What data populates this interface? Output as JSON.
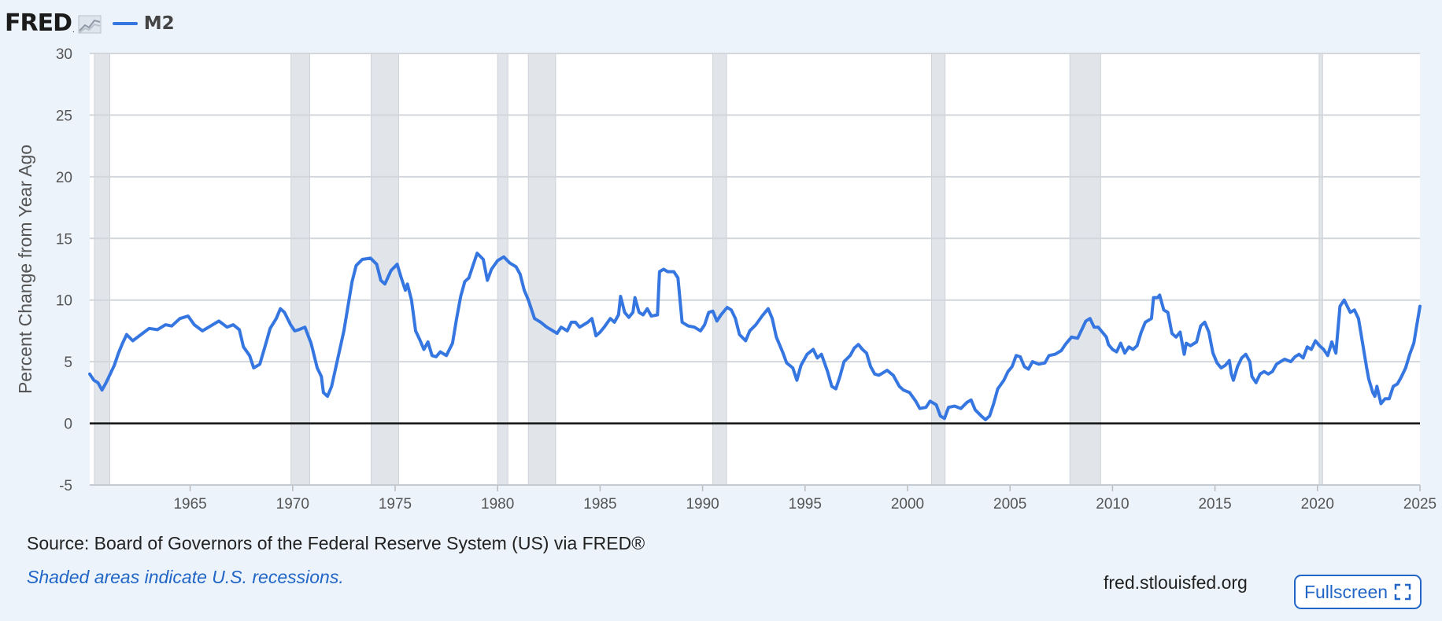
{
  "header": {
    "logo_text": "FRED",
    "logo_dot": ".",
    "logo_icon": "line-chart-icon",
    "legend_label": "M2",
    "legend_color": "#3576e0"
  },
  "chart_data": {
    "type": "line",
    "title": "",
    "xlabel": "",
    "ylabel": "Percent Change from Year Ago",
    "xlim": [
      1960.1,
      2025.0
    ],
    "ylim": [
      -5,
      30
    ],
    "xticks": [
      1965,
      1970,
      1975,
      1980,
      1985,
      1990,
      1995,
      2000,
      2005,
      2010,
      2015,
      2020,
      2025
    ],
    "yticks": [
      -5,
      0,
      5,
      10,
      15,
      20,
      25,
      30
    ],
    "grid": true,
    "zero_line": true,
    "recessions": [
      [
        1960.33,
        1961.08
      ],
      [
        1969.92,
        1970.83
      ],
      [
        1973.83,
        1975.17
      ],
      [
        1980.0,
        1980.5
      ],
      [
        1981.5,
        1982.83
      ],
      [
        1990.5,
        1991.17
      ],
      [
        2001.17,
        2001.83
      ],
      [
        2007.92,
        2009.42
      ],
      [
        2020.08,
        2020.25
      ]
    ],
    "series": [
      {
        "name": "M2",
        "color": "#3576e0",
        "points": [
          [
            1960.1,
            4.0
          ],
          [
            1960.3,
            3.5
          ],
          [
            1960.5,
            3.3
          ],
          [
            1960.7,
            2.7
          ],
          [
            1960.9,
            3.3
          ],
          [
            1961.1,
            4.0
          ],
          [
            1961.3,
            4.7
          ],
          [
            1961.5,
            5.7
          ],
          [
            1961.7,
            6.5
          ],
          [
            1961.9,
            7.2
          ],
          [
            1962.2,
            6.7
          ],
          [
            1962.6,
            7.2
          ],
          [
            1963.0,
            7.7
          ],
          [
            1963.4,
            7.6
          ],
          [
            1963.8,
            8.0
          ],
          [
            1964.1,
            7.9
          ],
          [
            1964.5,
            8.5
          ],
          [
            1964.9,
            8.7
          ],
          [
            1965.2,
            8.0
          ],
          [
            1965.6,
            7.5
          ],
          [
            1966.0,
            7.9
          ],
          [
            1966.4,
            8.3
          ],
          [
            1966.8,
            7.8
          ],
          [
            1967.1,
            8.0
          ],
          [
            1967.4,
            7.6
          ],
          [
            1967.6,
            6.2
          ],
          [
            1967.9,
            5.5
          ],
          [
            1968.1,
            4.5
          ],
          [
            1968.4,
            4.8
          ],
          [
            1968.7,
            6.5
          ],
          [
            1968.9,
            7.7
          ],
          [
            1969.2,
            8.5
          ],
          [
            1969.4,
            9.3
          ],
          [
            1969.6,
            9.0
          ],
          [
            1969.9,
            8.0
          ],
          [
            1970.1,
            7.5
          ],
          [
            1970.3,
            7.6
          ],
          [
            1970.6,
            7.8
          ],
          [
            1970.9,
            6.5
          ],
          [
            1971.2,
            4.5
          ],
          [
            1971.4,
            3.8
          ],
          [
            1971.5,
            2.5
          ],
          [
            1971.7,
            2.2
          ],
          [
            1971.9,
            3.0
          ],
          [
            1972.1,
            4.5
          ],
          [
            1972.3,
            6.0
          ],
          [
            1972.5,
            7.5
          ],
          [
            1972.7,
            9.5
          ],
          [
            1972.9,
            11.5
          ],
          [
            1973.1,
            12.8
          ],
          [
            1973.4,
            13.3
          ],
          [
            1973.8,
            13.4
          ],
          [
            1974.1,
            12.9
          ],
          [
            1974.3,
            11.6
          ],
          [
            1974.5,
            11.3
          ],
          [
            1974.8,
            12.4
          ],
          [
            1975.1,
            12.9
          ],
          [
            1975.3,
            11.8
          ],
          [
            1975.5,
            10.8
          ],
          [
            1975.6,
            11.3
          ],
          [
            1975.8,
            10.0
          ],
          [
            1976.0,
            7.5
          ],
          [
            1976.2,
            6.8
          ],
          [
            1976.4,
            6.0
          ],
          [
            1976.6,
            6.6
          ],
          [
            1976.8,
            5.5
          ],
          [
            1977.0,
            5.4
          ],
          [
            1977.2,
            5.8
          ],
          [
            1977.5,
            5.5
          ],
          [
            1977.8,
            6.5
          ],
          [
            1978.0,
            8.5
          ],
          [
            1978.2,
            10.3
          ],
          [
            1978.4,
            11.5
          ],
          [
            1978.6,
            11.8
          ],
          [
            1978.8,
            12.8
          ],
          [
            1979.0,
            13.8
          ],
          [
            1979.3,
            13.3
          ],
          [
            1979.5,
            11.6
          ],
          [
            1979.7,
            12.5
          ],
          [
            1980.0,
            13.2
          ],
          [
            1980.3,
            13.5
          ],
          [
            1980.6,
            13.0
          ],
          [
            1980.9,
            12.7
          ],
          [
            1981.1,
            12.1
          ],
          [
            1981.3,
            10.8
          ],
          [
            1981.5,
            10.0
          ],
          [
            1981.8,
            8.5
          ],
          [
            1982.1,
            8.2
          ],
          [
            1982.4,
            7.8
          ],
          [
            1982.7,
            7.5
          ],
          [
            1982.9,
            7.3
          ],
          [
            1983.1,
            7.8
          ],
          [
            1983.4,
            7.5
          ],
          [
            1983.6,
            8.2
          ],
          [
            1983.8,
            8.2
          ],
          [
            1984.0,
            7.8
          ],
          [
            1984.2,
            8.0
          ],
          [
            1984.4,
            8.2
          ],
          [
            1984.6,
            8.5
          ],
          [
            1984.8,
            7.1
          ],
          [
            1985.0,
            7.4
          ],
          [
            1985.2,
            7.8
          ],
          [
            1985.5,
            8.5
          ],
          [
            1985.7,
            8.2
          ],
          [
            1985.9,
            8.8
          ],
          [
            1986.0,
            10.3
          ],
          [
            1986.2,
            9.0
          ],
          [
            1986.4,
            8.6
          ],
          [
            1986.6,
            9.0
          ],
          [
            1986.7,
            10.2
          ],
          [
            1986.9,
            9.0
          ],
          [
            1987.1,
            8.8
          ],
          [
            1987.3,
            9.3
          ],
          [
            1987.5,
            8.7
          ],
          [
            1987.8,
            8.8
          ],
          [
            1987.9,
            12.3
          ],
          [
            1988.1,
            12.5
          ],
          [
            1988.3,
            12.3
          ],
          [
            1988.6,
            12.3
          ],
          [
            1988.8,
            11.8
          ],
          [
            1989.0,
            8.2
          ],
          [
            1989.3,
            7.9
          ],
          [
            1989.6,
            7.8
          ],
          [
            1989.9,
            7.5
          ],
          [
            1990.1,
            8.0
          ],
          [
            1990.3,
            9.0
          ],
          [
            1990.5,
            9.1
          ],
          [
            1990.7,
            8.3
          ],
          [
            1990.9,
            8.8
          ],
          [
            1991.2,
            9.4
          ],
          [
            1991.4,
            9.2
          ],
          [
            1991.6,
            8.5
          ],
          [
            1991.8,
            7.2
          ],
          [
            1992.1,
            6.7
          ],
          [
            1992.3,
            7.5
          ],
          [
            1992.6,
            8.0
          ],
          [
            1992.9,
            8.7
          ],
          [
            1993.2,
            9.3
          ],
          [
            1993.4,
            8.5
          ],
          [
            1993.6,
            7.0
          ],
          [
            1993.9,
            5.8
          ],
          [
            1994.1,
            4.9
          ],
          [
            1994.4,
            4.5
          ],
          [
            1994.6,
            3.5
          ],
          [
            1994.8,
            4.7
          ],
          [
            1995.1,
            5.6
          ],
          [
            1995.4,
            6.0
          ],
          [
            1995.6,
            5.3
          ],
          [
            1995.8,
            5.6
          ],
          [
            1996.1,
            4.2
          ],
          [
            1996.3,
            3.0
          ],
          [
            1996.5,
            2.8
          ],
          [
            1996.7,
            3.8
          ],
          [
            1996.9,
            5.0
          ],
          [
            1997.2,
            5.5
          ],
          [
            1997.4,
            6.1
          ],
          [
            1997.6,
            6.4
          ],
          [
            1997.8,
            6.0
          ],
          [
            1998.0,
            5.7
          ],
          [
            1998.2,
            4.6
          ],
          [
            1998.4,
            4.0
          ],
          [
            1998.6,
            3.9
          ],
          [
            1998.8,
            4.1
          ],
          [
            1999.0,
            4.3
          ],
          [
            1999.3,
            3.9
          ],
          [
            1999.6,
            3.0
          ],
          [
            1999.8,
            2.7
          ],
          [
            2000.1,
            2.5
          ],
          [
            2000.4,
            1.8
          ],
          [
            2000.6,
            1.2
          ],
          [
            2000.9,
            1.3
          ],
          [
            2001.1,
            1.8
          ],
          [
            2001.4,
            1.5
          ],
          [
            2001.6,
            0.6
          ],
          [
            2001.8,
            0.4
          ],
          [
            2002.0,
            1.3
          ],
          [
            2002.3,
            1.4
          ],
          [
            2002.6,
            1.2
          ],
          [
            2002.9,
            1.7
          ],
          [
            2003.1,
            1.9
          ],
          [
            2003.3,
            1.1
          ],
          [
            2003.6,
            0.6
          ],
          [
            2003.8,
            0.3
          ],
          [
            2004.0,
            0.6
          ],
          [
            2004.2,
            1.6
          ],
          [
            2004.4,
            2.8
          ],
          [
            2004.7,
            3.5
          ],
          [
            2004.9,
            4.2
          ],
          [
            2005.1,
            4.6
          ],
          [
            2005.3,
            5.5
          ],
          [
            2005.5,
            5.4
          ],
          [
            2005.7,
            4.6
          ],
          [
            2005.9,
            4.4
          ],
          [
            2006.1,
            5.0
          ],
          [
            2006.4,
            4.8
          ],
          [
            2006.7,
            4.9
          ],
          [
            2006.9,
            5.5
          ],
          [
            2007.2,
            5.6
          ],
          [
            2007.5,
            5.9
          ],
          [
            2007.7,
            6.4
          ],
          [
            2008.0,
            7.0
          ],
          [
            2008.3,
            6.9
          ],
          [
            2008.5,
            7.6
          ],
          [
            2008.7,
            8.3
          ],
          [
            2008.9,
            8.5
          ],
          [
            2009.1,
            7.8
          ],
          [
            2009.3,
            7.8
          ],
          [
            2009.5,
            7.4
          ],
          [
            2009.7,
            7.0
          ],
          [
            2009.8,
            6.4
          ],
          [
            2010.0,
            6.0
          ],
          [
            2010.2,
            5.8
          ],
          [
            2010.4,
            6.5
          ],
          [
            2010.6,
            5.7
          ],
          [
            2010.8,
            6.2
          ],
          [
            2011.0,
            6.0
          ],
          [
            2011.2,
            6.3
          ],
          [
            2011.4,
            7.4
          ],
          [
            2011.6,
            8.2
          ],
          [
            2011.9,
            8.5
          ],
          [
            2012.0,
            10.2
          ],
          [
            2012.2,
            10.2
          ],
          [
            2012.3,
            10.4
          ],
          [
            2012.5,
            9.2
          ],
          [
            2012.7,
            9.0
          ],
          [
            2012.9,
            7.3
          ],
          [
            2013.1,
            7.0
          ],
          [
            2013.3,
            7.4
          ],
          [
            2013.5,
            5.6
          ],
          [
            2013.6,
            6.5
          ],
          [
            2013.8,
            6.3
          ],
          [
            2014.1,
            6.6
          ],
          [
            2014.3,
            7.9
          ],
          [
            2014.5,
            8.2
          ],
          [
            2014.7,
            7.4
          ],
          [
            2014.9,
            5.7
          ],
          [
            2015.1,
            4.9
          ],
          [
            2015.3,
            4.5
          ],
          [
            2015.5,
            4.7
          ],
          [
            2015.7,
            5.1
          ],
          [
            2015.8,
            4.0
          ],
          [
            2015.9,
            3.5
          ],
          [
            2016.1,
            4.6
          ],
          [
            2016.3,
            5.3
          ],
          [
            2016.5,
            5.6
          ],
          [
            2016.7,
            5.0
          ],
          [
            2016.8,
            3.8
          ],
          [
            2017.0,
            3.3
          ],
          [
            2017.2,
            4.0
          ],
          [
            2017.4,
            4.2
          ],
          [
            2017.6,
            4.0
          ],
          [
            2017.8,
            4.2
          ],
          [
            2018.0,
            4.8
          ],
          [
            2018.2,
            5.0
          ],
          [
            2018.4,
            5.2
          ],
          [
            2018.7,
            5.0
          ],
          [
            2018.9,
            5.4
          ],
          [
            2019.1,
            5.6
          ],
          [
            2019.3,
            5.3
          ],
          [
            2019.5,
            6.2
          ],
          [
            2019.7,
            6.0
          ],
          [
            2019.9,
            6.7
          ],
          [
            2020.1,
            6.3
          ],
          [
            2020.3,
            6.0
          ],
          [
            2020.5,
            5.5
          ],
          [
            2020.7,
            6.6
          ],
          [
            2020.9,
            5.7
          ],
          [
            2021.1,
            9.5
          ],
          [
            2021.3,
            10.0
          ],
          [
            2021.6,
            9.0
          ],
          [
            2021.8,
            9.2
          ],
          [
            2022.0,
            8.5
          ],
          [
            2022.2,
            6.5
          ],
          [
            2022.4,
            4.5
          ],
          [
            2022.5,
            3.6
          ],
          [
            2022.7,
            2.5
          ],
          [
            2022.8,
            2.2
          ],
          [
            2022.9,
            3.0
          ],
          [
            2023.1,
            1.6
          ],
          [
            2023.3,
            2.0
          ],
          [
            2023.5,
            2.0
          ],
          [
            2023.7,
            3.0
          ],
          [
            2023.9,
            3.2
          ],
          [
            2024.1,
            3.8
          ],
          [
            2024.3,
            4.5
          ],
          [
            2024.5,
            5.6
          ],
          [
            2024.7,
            6.5
          ],
          [
            2024.9,
            8.5
          ],
          [
            2025.0,
            9.5
          ]
        ]
      }
    ]
  },
  "footer": {
    "source": "Source: Board of Governors of the Federal Reserve System (US) via FRED®",
    "note": "Shaded areas indicate U.S. recessions.",
    "site": "fred.stlouisfed.org",
    "fullscreen_label": "Fullscreen",
    "fullscreen_icon": "expand-icon"
  }
}
